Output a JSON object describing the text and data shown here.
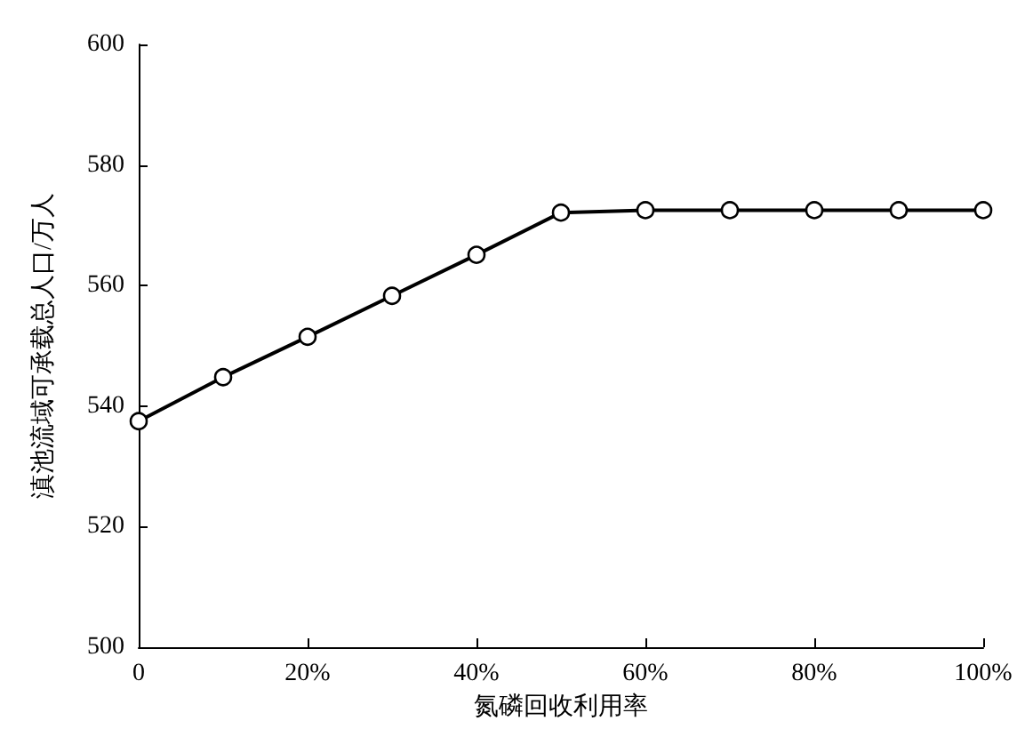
{
  "chart_data": {
    "type": "line",
    "xlabel": "氮磷回收利用率",
    "ylabel": "滇池流域可承载总人口/万人",
    "x": [
      0,
      10,
      20,
      30,
      40,
      50,
      60,
      70,
      80,
      90,
      100
    ],
    "series": [
      {
        "color": "#000000",
        "values": [
          537.5,
          544.8,
          551.5,
          558.3,
          565.1,
          572.1,
          572.5,
          572.5,
          572.5,
          572.5,
          572.5
        ]
      }
    ],
    "xlim": [
      0,
      100
    ],
    "xticks": [
      {
        "value": 0,
        "label": "0"
      },
      {
        "value": 20,
        "label": "20%"
      },
      {
        "value": 40,
        "label": "40%"
      },
      {
        "value": 60,
        "label": "60%"
      },
      {
        "value": 80,
        "label": "80%"
      },
      {
        "value": 100,
        "label": "100%"
      }
    ],
    "ylim": [
      500,
      600
    ],
    "yticks": [
      500,
      520,
      540,
      560,
      580,
      600
    ],
    "marker": "circle",
    "line_style": "solid",
    "grid": false
  }
}
